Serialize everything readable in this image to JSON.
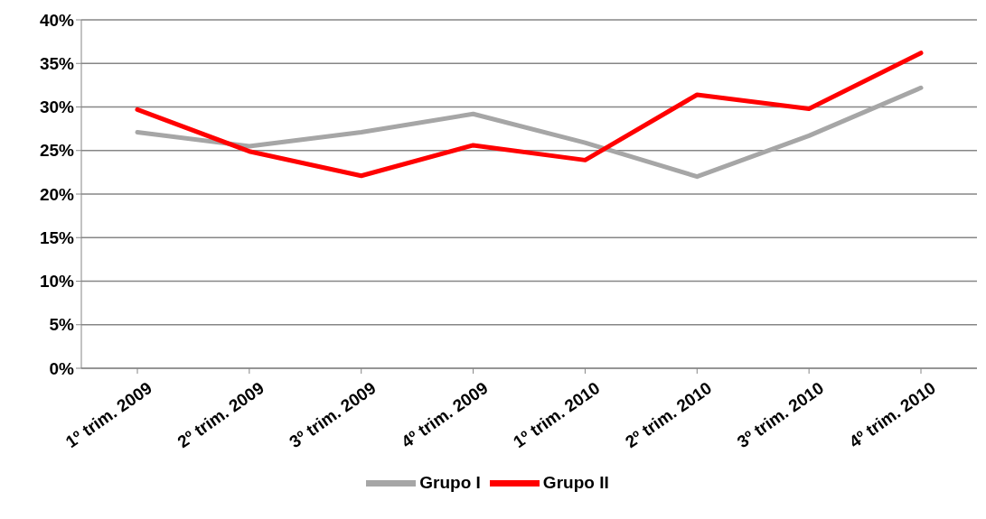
{
  "chart_data": {
    "type": "line",
    "categories": [
      "1º trim. 2009",
      "2º trim. 2009",
      "3º trim. 2009",
      "4º trim. 2009",
      "1º trim. 2010",
      "2º trim. 2010",
      "3º trim. 2010",
      "4º trim. 2010"
    ],
    "series": [
      {
        "name": "Grupo I",
        "color": "#a6a6a6",
        "values": [
          27.1,
          25.5,
          27.1,
          29.2,
          25.9,
          22.0,
          26.7,
          32.2
        ]
      },
      {
        "name": "Grupo II",
        "color": "#ff0000",
        "values": [
          29.7,
          24.9,
          22.1,
          25.6,
          23.9,
          31.4,
          29.8,
          36.2
        ]
      }
    ],
    "ylim": [
      0,
      40
    ],
    "yticks": [
      {
        "value": 0,
        "label": "0%"
      },
      {
        "value": 5,
        "label": "5%"
      },
      {
        "value": 10,
        "label": "10%"
      },
      {
        "value": 15,
        "label": "15%"
      },
      {
        "value": 20,
        "label": "20%"
      },
      {
        "value": 25,
        "label": "25%"
      },
      {
        "value": 30,
        "label": "30%"
      },
      {
        "value": 35,
        "label": "35%"
      },
      {
        "value": 40,
        "label": "40%"
      }
    ],
    "grid": "y",
    "legend": "bottom",
    "marker": "none",
    "line_style": "solid"
  }
}
